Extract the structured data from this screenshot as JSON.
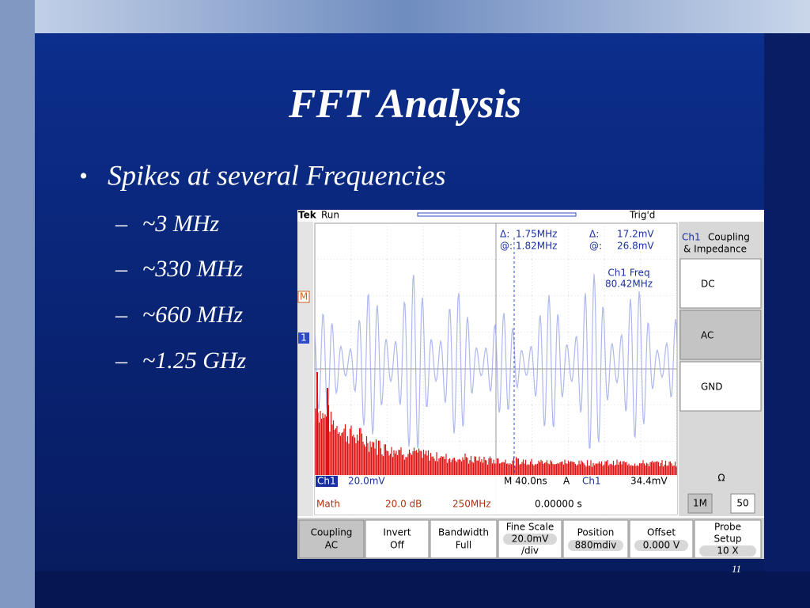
{
  "slide": {
    "title": "FFT Analysis",
    "bullet": "Spikes at several Frequencies",
    "sub_bullets": [
      "~3 MHz",
      "~330 MHz",
      "~660 MHz",
      "~1.25 GHz"
    ],
    "page_number": "11"
  },
  "scope": {
    "brand": "Tek",
    "state": "Run",
    "trigger_status": "Trig'd",
    "cursor": {
      "rows": [
        [
          "Δ:",
          "1.75MHz",
          "Δ:",
          "17.2mV"
        ],
        [
          "@:",
          "1.82MHz",
          "@:",
          "26.8mV"
        ]
      ]
    },
    "measurement": {
      "label": "Ch1 Freq",
      "value": "80.42MHz"
    },
    "markers": [
      "M",
      "1"
    ],
    "side_menu": {
      "channel": "Ch1",
      "title": [
        "Coupling",
        "& Impedance"
      ],
      "options": [
        "DC",
        "AC",
        "GND"
      ],
      "impedance_label": "Ω",
      "impedance_options": [
        "1M",
        "50"
      ]
    },
    "status": {
      "ch1": [
        "Ch1",
        "20.0mV"
      ],
      "timebase": "M 40.0ns",
      "trigger": [
        "A",
        "Ch1",
        "34.4mV"
      ],
      "math": [
        "Math",
        "20.0 dB",
        "250MHz"
      ],
      "position": "0.00000 s"
    },
    "bottom_menu": [
      {
        "label": [
          "Coupling",
          "AC"
        ]
      },
      {
        "label": [
          "Invert",
          "Off"
        ]
      },
      {
        "label": [
          "Bandwidth",
          "Full"
        ]
      },
      {
        "label": [
          "Fine Scale",
          "20.0mV",
          "/div"
        ]
      },
      {
        "label": [
          "Position",
          "880mdiv"
        ]
      },
      {
        "label": [
          "Offset",
          "0.000 V"
        ]
      },
      {
        "label": [
          "Probe",
          "Setup",
          "10 X"
        ]
      }
    ]
  }
}
